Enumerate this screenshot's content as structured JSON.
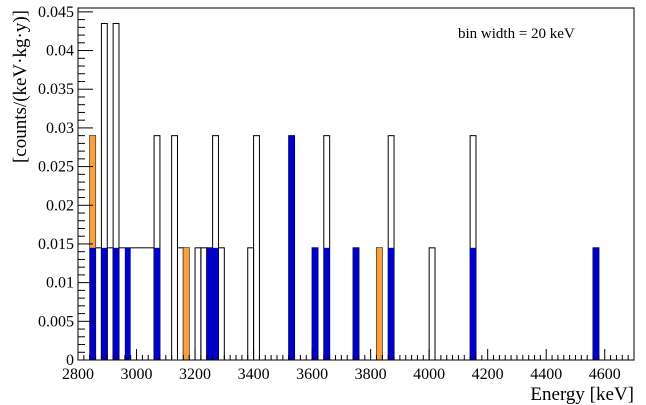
{
  "chart_data": {
    "type": "bar",
    "subtype": "stacked-histogram",
    "title": "",
    "xlabel": "Energy [keV]",
    "ylabel": "[counts/(keV·kg·y)]",
    "xlim": [
      2800,
      4700
    ],
    "ylim": [
      0,
      0.0455
    ],
    "bin_width": 20,
    "annotation": "bin width = 20 keV",
    "x_ticks": [
      2800,
      3000,
      3200,
      3400,
      3600,
      3800,
      4000,
      4200,
      4400,
      4600
    ],
    "x_tick_labels": [
      "2800",
      "3000",
      "3200",
      "3400",
      "3600",
      "3800",
      "4000",
      "4200",
      "4400",
      "4600"
    ],
    "y_ticks": [
      0,
      0.005,
      0.01,
      0.015,
      0.02,
      0.025,
      0.03,
      0.035,
      0.04,
      0.045
    ],
    "y_tick_labels": [
      "0",
      "0.005",
      "0.01",
      "0.015",
      "0.02",
      "0.025",
      "0.03",
      "0.035",
      "0.04",
      "0.045"
    ],
    "colors": {
      "orange": "#f7a040",
      "blue": "#0000cc",
      "outline": "#000000"
    },
    "series": [
      {
        "style": "outline",
        "bins": [
          {
            "x0": 2840,
            "x1": 2860,
            "y": 0.029
          },
          {
            "x0": 2860,
            "x1": 2880,
            "y": 0.0145
          },
          {
            "x0": 2880,
            "x1": 2900,
            "y": 0.0435
          },
          {
            "x0": 2900,
            "x1": 2920,
            "y": 0.0145
          },
          {
            "x0": 2920,
            "x1": 2940,
            "y": 0.0435
          },
          {
            "x0": 2940,
            "x1": 3060,
            "y": 0.0145
          },
          {
            "x0": 3060,
            "x1": 3080,
            "y": 0.029
          },
          {
            "x0": 3120,
            "x1": 3140,
            "y": 0.029
          },
          {
            "x0": 3140,
            "x1": 3160,
            "y": 0.0145
          },
          {
            "x0": 3160,
            "x1": 3180,
            "y": 0.0145
          },
          {
            "x0": 3200,
            "x1": 3220,
            "y": 0.0145
          },
          {
            "x0": 3220,
            "x1": 3240,
            "y": 0.0145
          },
          {
            "x0": 3240,
            "x1": 3260,
            "y": 0.0145
          },
          {
            "x0": 3260,
            "x1": 3280,
            "y": 0.029
          },
          {
            "x0": 3280,
            "x1": 3300,
            "y": 0.0145
          },
          {
            "x0": 3380,
            "x1": 3400,
            "y": 0.0145
          },
          {
            "x0": 3400,
            "x1": 3420,
            "y": 0.029
          },
          {
            "x0": 3520,
            "x1": 3540,
            "y": 0.029
          },
          {
            "x0": 3600,
            "x1": 3620,
            "y": 0.0145
          },
          {
            "x0": 3640,
            "x1": 3660,
            "y": 0.029
          },
          {
            "x0": 3740,
            "x1": 3760,
            "y": 0.0145
          },
          {
            "x0": 3820,
            "x1": 3840,
            "y": 0.0145
          },
          {
            "x0": 3860,
            "x1": 3880,
            "y": 0.029
          },
          {
            "x0": 4000,
            "x1": 4020,
            "y": 0.0145
          },
          {
            "x0": 4140,
            "x1": 4160,
            "y": 0.029
          },
          {
            "x0": 4560,
            "x1": 4580,
            "y": 0.0145
          }
        ]
      },
      {
        "style": "orange",
        "bins": [
          {
            "x0": 2840,
            "x1": 2860,
            "y": 0.029
          },
          {
            "x0": 3160,
            "x1": 3180,
            "y": 0.0145
          },
          {
            "x0": 3820,
            "x1": 3840,
            "y": 0.0145
          }
        ]
      },
      {
        "style": "blue",
        "bins": [
          {
            "x0": 2840,
            "x1": 2860,
            "y": 0.0145
          },
          {
            "x0": 2880,
            "x1": 2900,
            "y": 0.0145
          },
          {
            "x0": 2920,
            "x1": 2940,
            "y": 0.0145
          },
          {
            "x0": 2960,
            "x1": 2980,
            "y": 0.0145
          },
          {
            "x0": 3060,
            "x1": 3080,
            "y": 0.0145
          },
          {
            "x0": 3240,
            "x1": 3260,
            "y": 0.0145
          },
          {
            "x0": 3260,
            "x1": 3280,
            "y": 0.0145
          },
          {
            "x0": 3520,
            "x1": 3540,
            "y": 0.029
          },
          {
            "x0": 3600,
            "x1": 3620,
            "y": 0.0145
          },
          {
            "x0": 3640,
            "x1": 3660,
            "y": 0.0145
          },
          {
            "x0": 3740,
            "x1": 3760,
            "y": 0.0145
          },
          {
            "x0": 3860,
            "x1": 3880,
            "y": 0.0145
          },
          {
            "x0": 4140,
            "x1": 4160,
            "y": 0.0145
          },
          {
            "x0": 4560,
            "x1": 4580,
            "y": 0.0145
          }
        ]
      }
    ]
  }
}
